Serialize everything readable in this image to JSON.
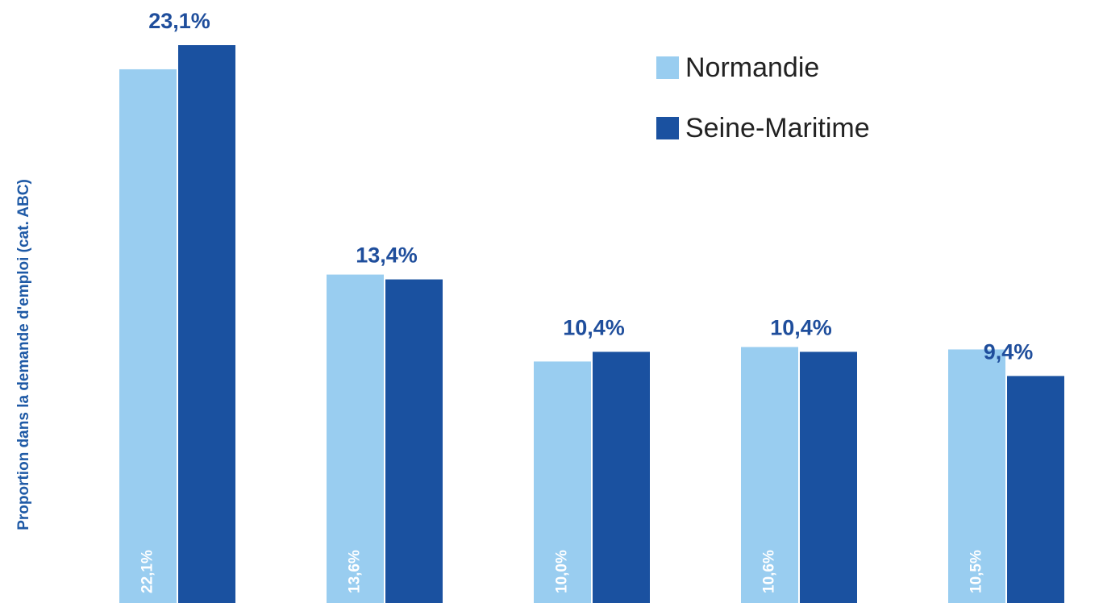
{
  "chart_data": {
    "type": "bar",
    "y_label": "Proportion dans la demande d'emploi (cat. ABC)",
    "categories": [
      null,
      null,
      null,
      null,
      null
    ],
    "series": [
      {
        "name": "Normandie",
        "color": "#99cdf0",
        "values": [
          22.1,
          13.6,
          10.0,
          10.6,
          10.5
        ],
        "value_labels": [
          "22,1%",
          "13,6%",
          "10,0%",
          "10,6%",
          "10,5%"
        ]
      },
      {
        "name": "Seine-Maritime",
        "color": "#1a51a0",
        "values": [
          23.1,
          13.4,
          10.4,
          10.4,
          9.4
        ],
        "value_labels": [
          "23,1%",
          "13,4%",
          "10,4%",
          "10,4%",
          "9,4%"
        ]
      }
    ],
    "legend": "top-right"
  }
}
